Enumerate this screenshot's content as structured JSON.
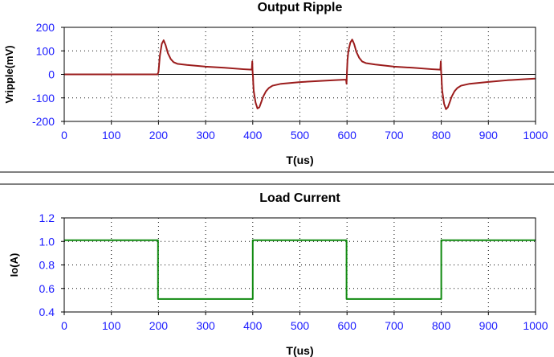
{
  "chart_data": [
    {
      "type": "line",
      "title": "Output Ripple",
      "xlabel": "T(us)",
      "ylabel": "Vripple(mV)",
      "xlim": [
        0,
        1000
      ],
      "ylim": [
        -200,
        200
      ],
      "xticks": [
        0,
        100,
        200,
        300,
        400,
        500,
        600,
        700,
        800,
        900,
        1000
      ],
      "yticks": [
        200,
        100,
        0,
        -100,
        -200
      ],
      "grid": true,
      "zero_line": true,
      "series": [
        {
          "color": "#9b1c1c",
          "x": [
            0,
            198,
            200,
            203,
            207,
            211,
            215,
            220,
            226,
            232,
            240,
            260,
            300,
            340,
            380,
            398,
            399,
            399.5,
            400,
            400.5,
            401,
            402,
            406,
            410,
            414,
            418,
            422,
            428,
            434,
            442,
            460,
            500,
            540,
            580,
            598,
            599,
            599.5,
            600,
            601,
            603,
            607,
            611,
            615,
            620,
            626,
            632,
            640,
            660,
            700,
            740,
            780,
            798,
            799,
            799.5,
            800,
            800.5,
            801,
            802,
            806,
            810,
            814,
            818,
            822,
            828,
            834,
            842,
            860,
            900,
            940,
            980,
            1000
          ],
          "values": [
            0,
            0,
            10,
            80,
            130,
            145,
            125,
            90,
            65,
            52,
            45,
            40,
            33,
            28,
            22,
            20,
            55,
            20,
            0,
            -8,
            -35,
            -70,
            -120,
            -145,
            -140,
            -118,
            -95,
            -72,
            -58,
            -48,
            -40,
            -33,
            -28,
            -24,
            -22,
            -40,
            -10,
            15,
            60,
            100,
            135,
            148,
            130,
            95,
            70,
            55,
            48,
            42,
            33,
            28,
            22,
            20,
            55,
            20,
            0,
            -8,
            -35,
            -70,
            -125,
            -148,
            -140,
            -118,
            -95,
            -72,
            -58,
            -48,
            -40,
            -32,
            -25,
            -20,
            -18
          ]
        }
      ]
    },
    {
      "type": "line",
      "title": "Load Current",
      "xlabel": "T(us)",
      "ylabel": "Io(A)",
      "xlim": [
        0,
        1000
      ],
      "ylim": [
        0.4,
        1.2
      ],
      "xticks": [
        0,
        100,
        200,
        300,
        400,
        500,
        600,
        700,
        800,
        900,
        1000
      ],
      "yticks": [
        1.2,
        1.0,
        0.8,
        0.6,
        0.4
      ],
      "yticklabels": [
        "1.2",
        "1.0",
        "0.8",
        "0.6",
        "0.4"
      ],
      "grid": true,
      "series": [
        {
          "color": "#108a10",
          "x": [
            0,
            199,
            199,
            400,
            400,
            599,
            599,
            800,
            800,
            1000
          ],
          "values": [
            1.01,
            1.01,
            0.51,
            0.51,
            1.01,
            1.01,
            0.51,
            0.51,
            1.01,
            1.01
          ]
        }
      ]
    }
  ]
}
